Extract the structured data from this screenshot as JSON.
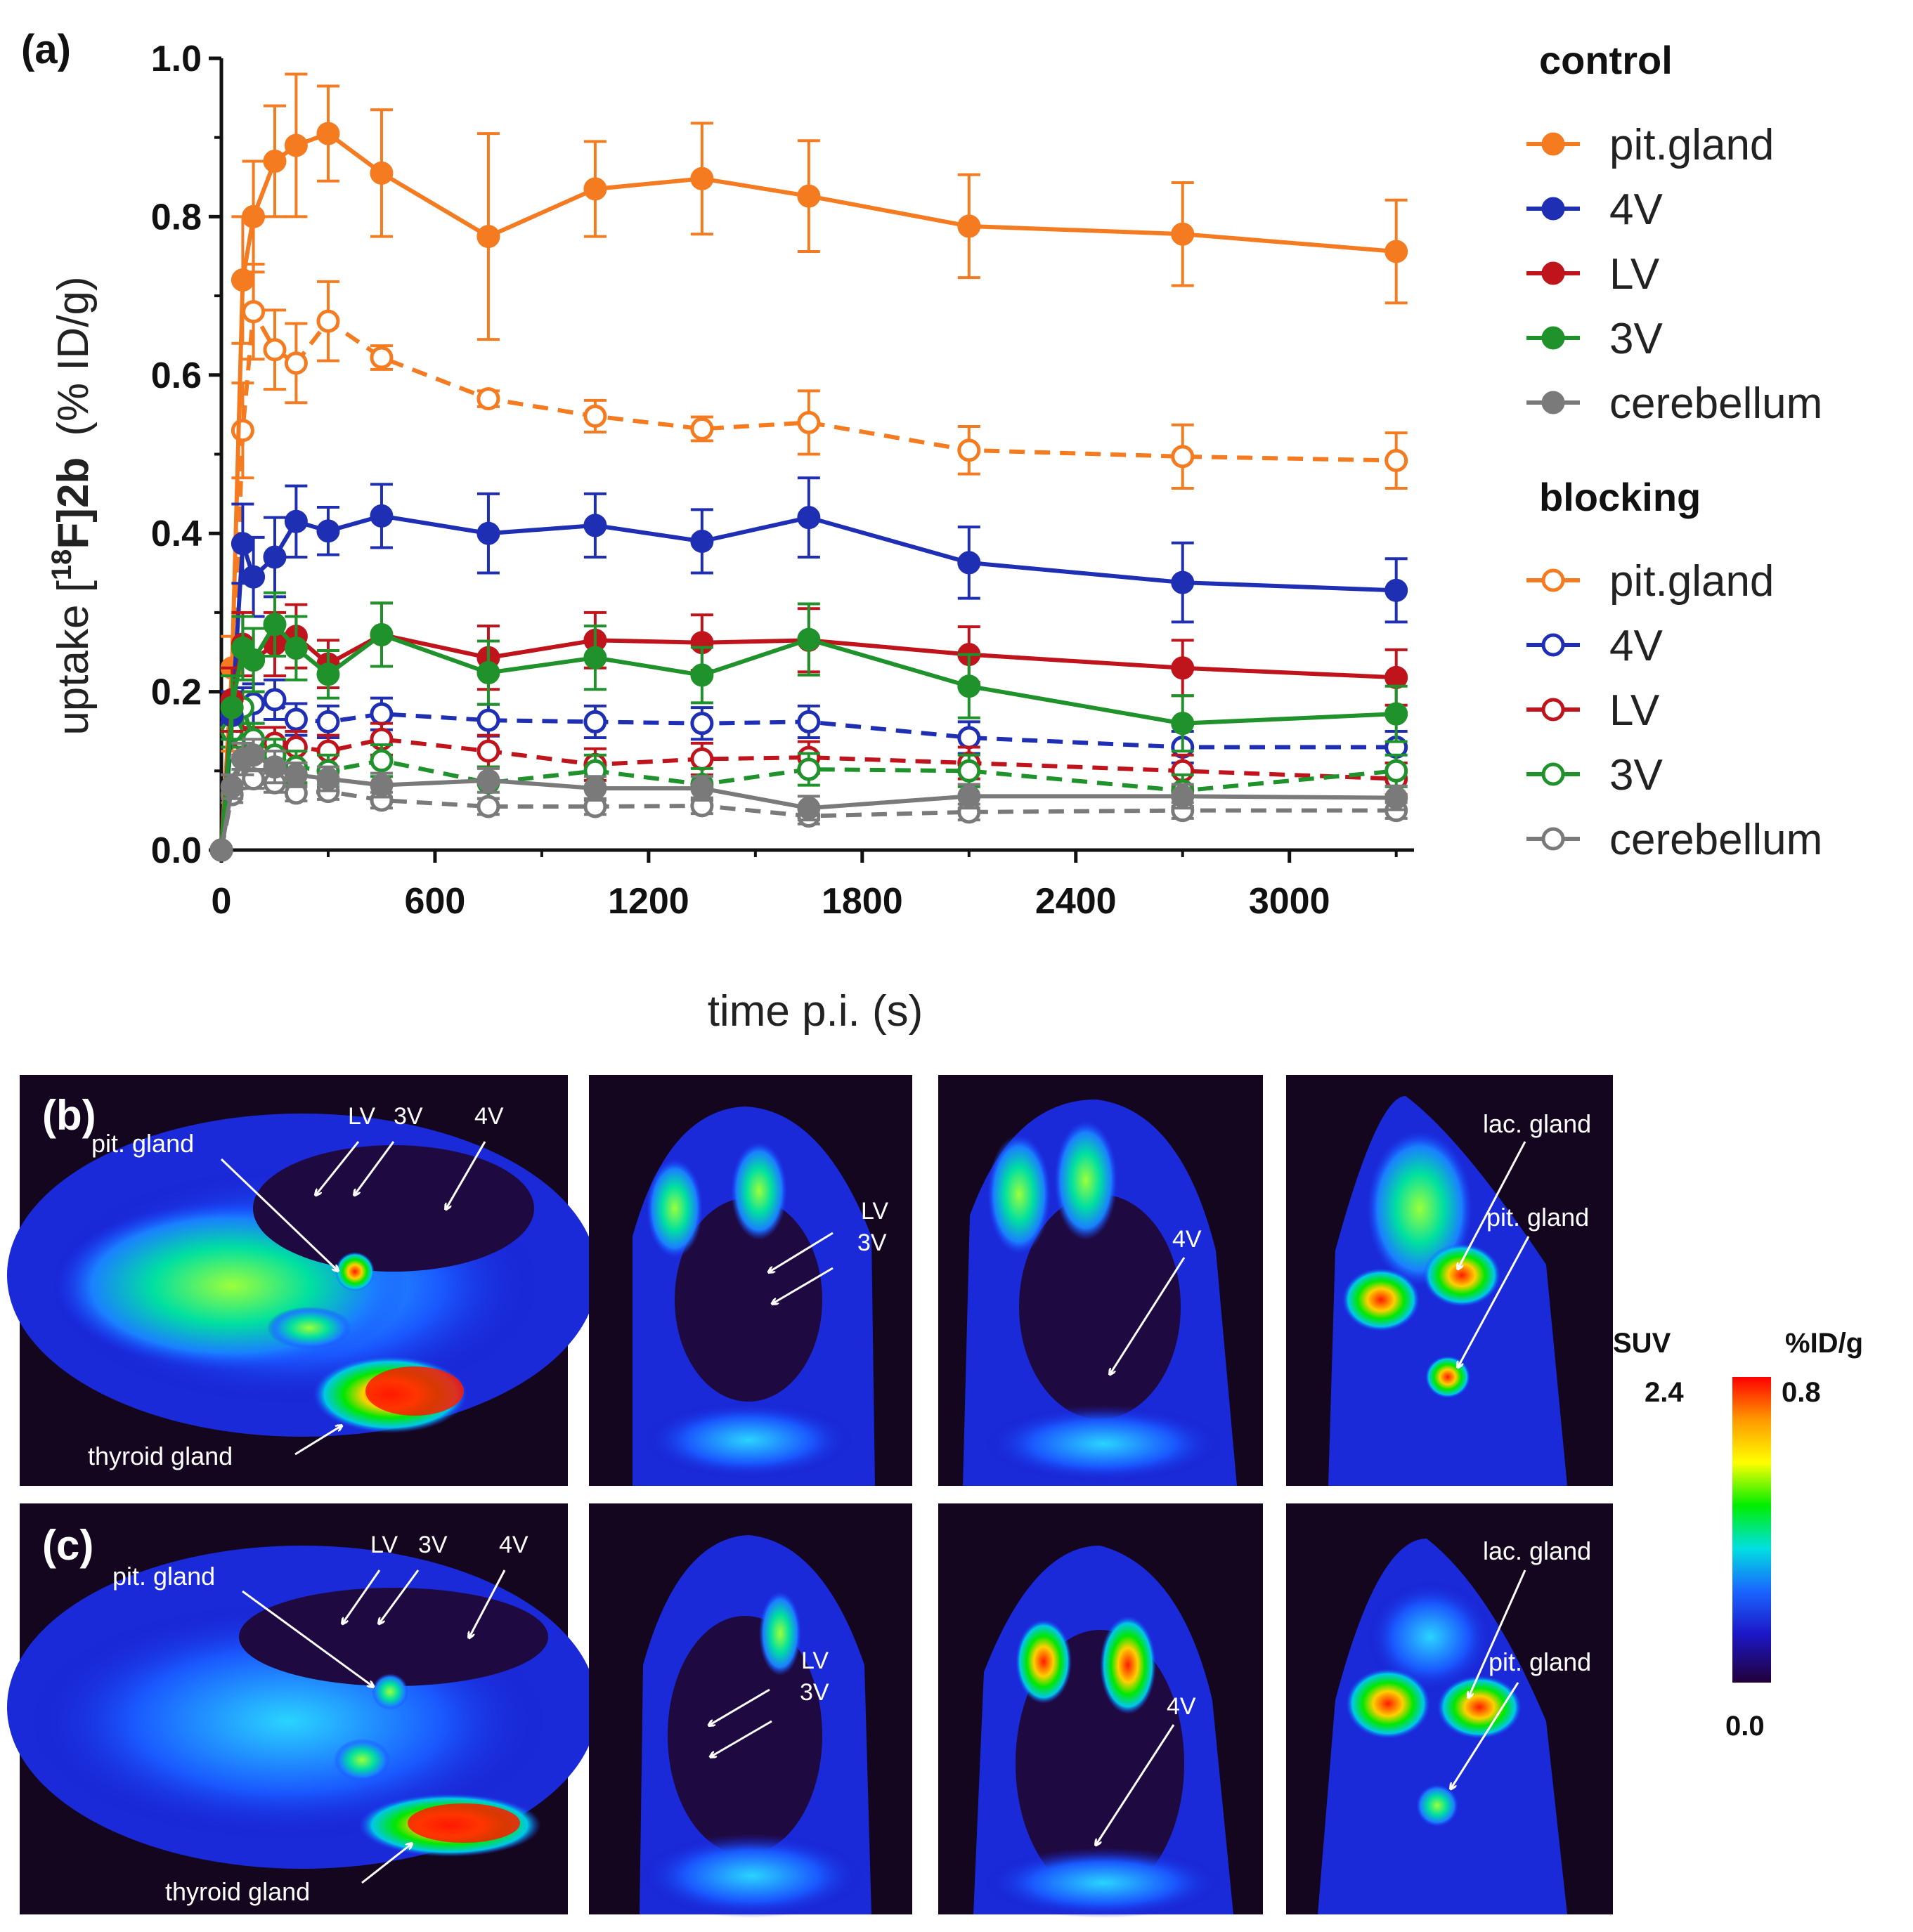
{
  "chart_data": {
    "type": "line",
    "panel_label": "(a)",
    "xlabel": "time p.i. (s)",
    "ylabel": {
      "prefix": "uptake [",
      "sup": "18",
      "mid": "F]2b",
      "unit": "(% ID/g)"
    },
    "xlim": [
      0,
      3350
    ],
    "ylim": [
      0,
      1.0
    ],
    "xticks": [
      0,
      600,
      1200,
      1800,
      2400,
      3000
    ],
    "xtick_labels": [
      "0",
      "600",
      "1200",
      "1800",
      "2400",
      "3000"
    ],
    "yticks": [
      0.0,
      0.2,
      0.4,
      0.6,
      0.8,
      1.0
    ],
    "ytick_labels": [
      "0.0",
      "0.2",
      "0.4",
      "0.6",
      "0.8",
      "1.0"
    ],
    "legend": {
      "position": "right",
      "control_title": "control",
      "blocking_title": "blocking"
    },
    "x": [
      0,
      30,
      60,
      90,
      150,
      210,
      300,
      450,
      750,
      1050,
      1350,
      1650,
      2100,
      2700,
      3300
    ],
    "series": [
      {
        "name": "pit.gland",
        "group": "control",
        "color": "#f47b20",
        "filled": true,
        "values": [
          0.0,
          0.23,
          0.72,
          0.8,
          0.87,
          0.89,
          0.905,
          0.855,
          0.775,
          0.835,
          0.848,
          0.826,
          0.788,
          0.778,
          0.756
        ],
        "errors": [
          0.0,
          0.04,
          0.08,
          0.07,
          0.07,
          0.09,
          0.06,
          0.08,
          0.13,
          0.06,
          0.07,
          0.07,
          0.065,
          0.065,
          0.065
        ]
      },
      {
        "name": "4V",
        "group": "control",
        "color": "#1f2fb4",
        "filled": true,
        "values": [
          0.0,
          0.17,
          0.387,
          0.345,
          0.37,
          0.415,
          0.403,
          0.422,
          0.4,
          0.41,
          0.39,
          0.42,
          0.363,
          0.338,
          0.328
        ],
        "errors": [
          0.0,
          0.03,
          0.05,
          0.05,
          0.05,
          0.045,
          0.03,
          0.04,
          0.05,
          0.04,
          0.04,
          0.05,
          0.045,
          0.05,
          0.04
        ]
      },
      {
        "name": "LV",
        "group": "control",
        "color": "#c0141c",
        "filled": true,
        "values": [
          0.0,
          0.19,
          0.26,
          0.24,
          0.26,
          0.27,
          0.235,
          0.272,
          0.243,
          0.265,
          0.262,
          0.265,
          0.247,
          0.23,
          0.218
        ],
        "errors": [
          0.0,
          0.04,
          0.04,
          0.04,
          0.04,
          0.04,
          0.03,
          0.04,
          0.04,
          0.035,
          0.035,
          0.04,
          0.035,
          0.035,
          0.035
        ]
      },
      {
        "name": "3V",
        "group": "control",
        "color": "#20922b",
        "filled": true,
        "values": [
          0.0,
          0.18,
          0.255,
          0.24,
          0.285,
          0.255,
          0.222,
          0.272,
          0.224,
          0.243,
          0.221,
          0.266,
          0.207,
          0.16,
          0.172
        ],
        "errors": [
          0.0,
          0.04,
          0.04,
          0.04,
          0.04,
          0.04,
          0.03,
          0.04,
          0.04,
          0.04,
          0.035,
          0.045,
          0.04,
          0.035,
          0.035
        ]
      },
      {
        "name": "cerebellum",
        "group": "control",
        "color": "#7a7a7a",
        "filled": true,
        "values": [
          0.0,
          0.08,
          0.115,
          0.12,
          0.105,
          0.095,
          0.09,
          0.082,
          0.088,
          0.078,
          0.078,
          0.053,
          0.068,
          0.068,
          0.066
        ],
        "errors": [
          0.0,
          0.015,
          0.02,
          0.02,
          0.02,
          0.015,
          0.015,
          0.015,
          0.015,
          0.015,
          0.015,
          0.015,
          0.015,
          0.015,
          0.015
        ]
      },
      {
        "name": "pit.gland",
        "group": "blocking",
        "color": "#f47b20",
        "filled": false,
        "values": [
          0.0,
          0.155,
          0.53,
          0.68,
          0.632,
          0.615,
          0.668,
          0.622,
          0.57,
          0.548,
          0.532,
          0.54,
          0.505,
          0.497,
          0.492
        ],
        "errors": [
          0.0,
          0.03,
          0.06,
          0.06,
          0.05,
          0.05,
          0.05,
          0.015,
          0.01,
          0.02,
          0.015,
          0.04,
          0.03,
          0.04,
          0.035
        ]
      },
      {
        "name": "4V",
        "group": "blocking",
        "color": "#1f2fb4",
        "filled": false,
        "values": [
          0.0,
          0.16,
          0.18,
          0.185,
          0.19,
          0.165,
          0.162,
          0.172,
          0.164,
          0.162,
          0.16,
          0.162,
          0.142,
          0.13,
          0.13
        ],
        "errors": [
          0.0,
          0.02,
          0.025,
          0.025,
          0.025,
          0.02,
          0.02,
          0.02,
          0.02,
          0.02,
          0.02,
          0.02,
          0.02,
          0.02,
          0.02
        ]
      },
      {
        "name": "LV",
        "group": "blocking",
        "color": "#c0141c",
        "filled": false,
        "values": [
          0.0,
          0.15,
          0.14,
          0.135,
          0.135,
          0.13,
          0.125,
          0.14,
          0.125,
          0.108,
          0.115,
          0.117,
          0.11,
          0.1,
          0.09
        ],
        "errors": [
          0.0,
          0.02,
          0.02,
          0.02,
          0.02,
          0.02,
          0.02,
          0.02,
          0.02,
          0.02,
          0.02,
          0.02,
          0.02,
          0.02,
          0.02
        ]
      },
      {
        "name": "3V",
        "group": "blocking",
        "color": "#20922b",
        "filled": false,
        "values": [
          0.0,
          0.15,
          0.18,
          0.14,
          0.12,
          0.105,
          0.1,
          0.113,
          0.085,
          0.1,
          0.083,
          0.102,
          0.1,
          0.075,
          0.1
        ],
        "errors": [
          0.0,
          0.02,
          0.02,
          0.02,
          0.02,
          0.02,
          0.02,
          0.02,
          0.02,
          0.02,
          0.02,
          0.02,
          0.02,
          0.02,
          0.02
        ]
      },
      {
        "name": "cerebellum",
        "group": "blocking",
        "color": "#7a7a7a",
        "filled": false,
        "values": [
          0.0,
          0.07,
          0.09,
          0.09,
          0.085,
          0.072,
          0.074,
          0.063,
          0.055,
          0.055,
          0.056,
          0.043,
          0.048,
          0.05,
          0.05
        ],
        "errors": [
          0.0,
          0.01,
          0.012,
          0.012,
          0.012,
          0.01,
          0.01,
          0.01,
          0.01,
          0.01,
          0.01,
          0.01,
          0.01,
          0.01,
          0.01
        ]
      }
    ]
  },
  "panels": {
    "b": {
      "label": "(b)",
      "sagittal": {
        "pit_gland": "pit. gland",
        "lv": "LV",
        "v3": "3V",
        "v4": "4V",
        "thyroid": "thyroid gland"
      },
      "coronal1": {
        "lv": "LV",
        "v3": "3V"
      },
      "coronal2": {
        "v4": "4V"
      },
      "coronal3": {
        "lac_gland": "lac. gland",
        "pit_gland": "pit. gland"
      }
    },
    "c": {
      "label": "(c)",
      "sagittal": {
        "pit_gland": "pit. gland",
        "lv": "LV",
        "v3": "3V",
        "v4": "4V",
        "thyroid": "thyroid gland"
      },
      "coronal1": {
        "lv": "LV",
        "v3": "3V"
      },
      "coronal2": {
        "v4": "4V"
      },
      "coronal3": {
        "lac_gland": "lac. gland",
        "pit_gland": "pit. gland"
      }
    }
  },
  "colorbar": {
    "suv_label": "SUV",
    "pct_label": "%ID/g",
    "suv_max": "2.4",
    "pct_max": "0.8",
    "min_label": "0.0",
    "colors": [
      "#ff0000",
      "#ff9900",
      "#ffff00",
      "#00ee00",
      "#00e0e0",
      "#1a66ff",
      "#1c17c8",
      "#22003a"
    ]
  }
}
